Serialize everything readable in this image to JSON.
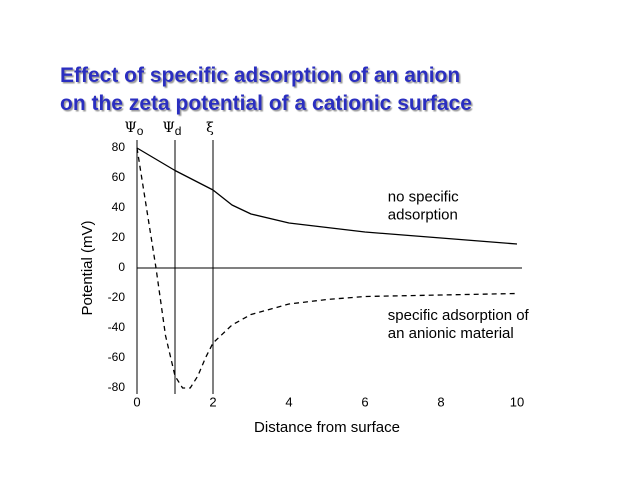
{
  "chart_data": {
    "type": "line",
    "title": [
      "Effect of specific adsorption of an anion",
      "on the zeta potential of a cationic surface"
    ],
    "xlabel": "Distance from surface",
    "ylabel": "Potential (mV)",
    "xlim": [
      0,
      10
    ],
    "ylim": [
      -80,
      80
    ],
    "xticks": [
      0,
      2,
      4,
      6,
      8,
      10
    ],
    "yticks": [
      80,
      60,
      40,
      20,
      0,
      -20,
      -40,
      -60,
      -80
    ],
    "markers": [
      {
        "x": 0,
        "symbol": "Ψ",
        "sub": "o"
      },
      {
        "x": 1,
        "symbol": "Ψ",
        "sub": "d"
      },
      {
        "x": 2,
        "symbol": "ξ"
      }
    ],
    "series": [
      {
        "color": "#000000",
        "dash": false,
        "x": [
          0,
          1,
          2,
          2.5,
          3,
          4,
          5,
          6,
          7,
          8,
          9,
          10
        ],
        "values": [
          80,
          65,
          52,
          42,
          36,
          30,
          27,
          24,
          22,
          20,
          18,
          16
        ]
      },
      {
        "color": "#000000",
        "dash": true,
        "x": [
          0,
          0.25,
          0.5,
          0.75,
          1,
          1.2,
          1.4,
          1.6,
          1.8,
          2,
          2.5,
          3,
          4,
          5,
          6,
          8,
          10
        ],
        "values": [
          80,
          40,
          0,
          -45,
          -72,
          -80,
          -80,
          -72,
          -60,
          -50,
          -38,
          -31,
          -24,
          -21,
          -19,
          -18,
          -17
        ]
      }
    ],
    "annotations": [
      {
        "x": 6.6,
        "y": 47,
        "lines": [
          "no specific",
          "adsorption"
        ]
      },
      {
        "x": 6.6,
        "y": -32,
        "lines": [
          "specific adsorption of",
          "an anionic material"
        ]
      }
    ]
  }
}
